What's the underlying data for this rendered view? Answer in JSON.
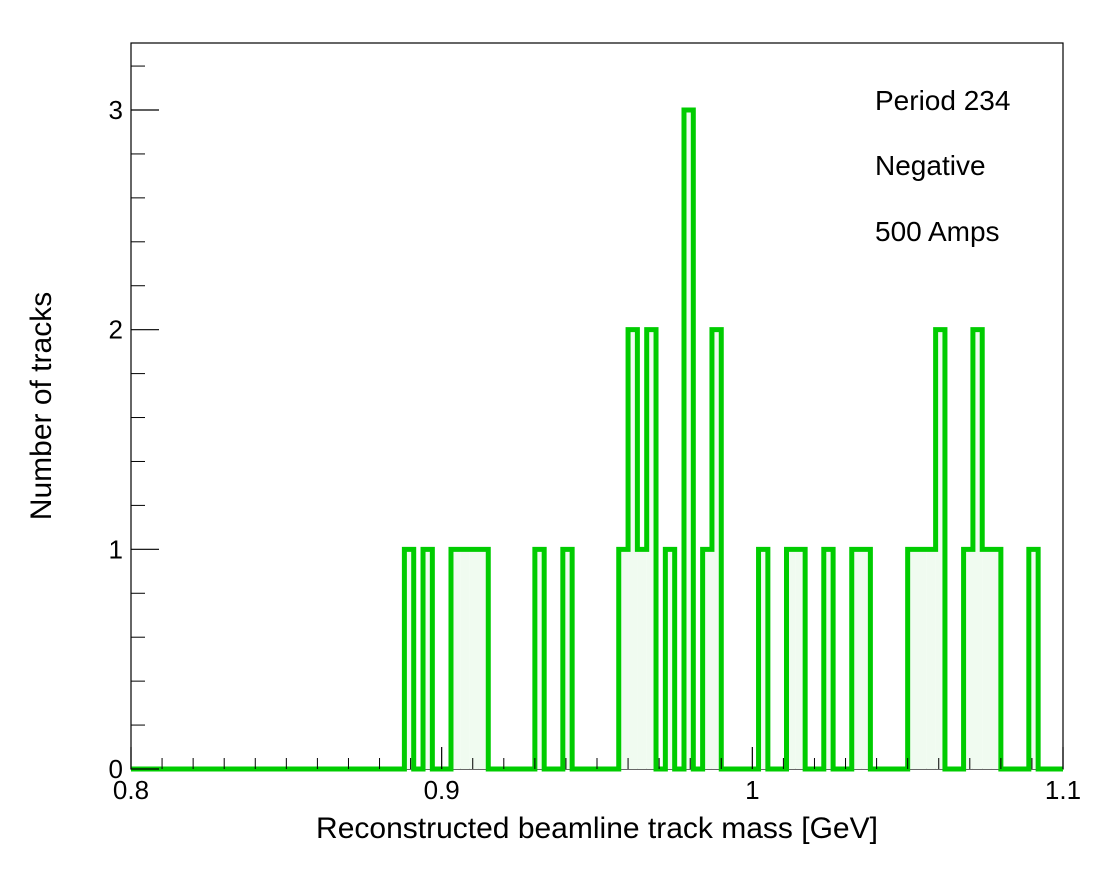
{
  "chart_data": {
    "type": "histogram",
    "title": "",
    "xlabel": "Reconstructed beamline track mass [GeV]",
    "ylabel": "Number of tracks",
    "xlim": [
      0.8,
      1.1
    ],
    "ylim": [
      0,
      3.3
    ],
    "x_ticks": [
      "0.8",
      "0.9",
      "1",
      "1.1"
    ],
    "y_ticks": [
      "0",
      "1",
      "2",
      "3"
    ],
    "bin_width": 0.003,
    "bins": [
      {
        "x": 0.888,
        "count": 1
      },
      {
        "x": 0.894,
        "count": 1
      },
      {
        "x": 0.903,
        "count": 1
      },
      {
        "x": 0.906,
        "count": 1
      },
      {
        "x": 0.909,
        "count": 1
      },
      {
        "x": 0.912,
        "count": 1
      },
      {
        "x": 0.93,
        "count": 1
      },
      {
        "x": 0.939,
        "count": 1
      },
      {
        "x": 0.957,
        "count": 1
      },
      {
        "x": 0.96,
        "count": 2
      },
      {
        "x": 0.963,
        "count": 1
      },
      {
        "x": 0.966,
        "count": 2
      },
      {
        "x": 0.972,
        "count": 1
      },
      {
        "x": 0.978,
        "count": 3
      },
      {
        "x": 0.984,
        "count": 1
      },
      {
        "x": 0.987,
        "count": 2
      },
      {
        "x": 1.002,
        "count": 1
      },
      {
        "x": 1.011,
        "count": 1
      },
      {
        "x": 1.014,
        "count": 1
      },
      {
        "x": 1.023,
        "count": 1
      },
      {
        "x": 1.032,
        "count": 1
      },
      {
        "x": 1.035,
        "count": 1
      },
      {
        "x": 1.05,
        "count": 1
      },
      {
        "x": 1.053,
        "count": 1
      },
      {
        "x": 1.056,
        "count": 1
      },
      {
        "x": 1.059,
        "count": 2
      },
      {
        "x": 1.068,
        "count": 1
      },
      {
        "x": 1.071,
        "count": 2
      },
      {
        "x": 1.074,
        "count": 1
      },
      {
        "x": 1.077,
        "count": 1
      },
      {
        "x": 1.089,
        "count": 1
      }
    ],
    "line_color": "#00cc00",
    "fill_color": "#f0fbf0",
    "annotations": [
      "Period 234",
      "Negative",
      "500 Amps"
    ]
  }
}
